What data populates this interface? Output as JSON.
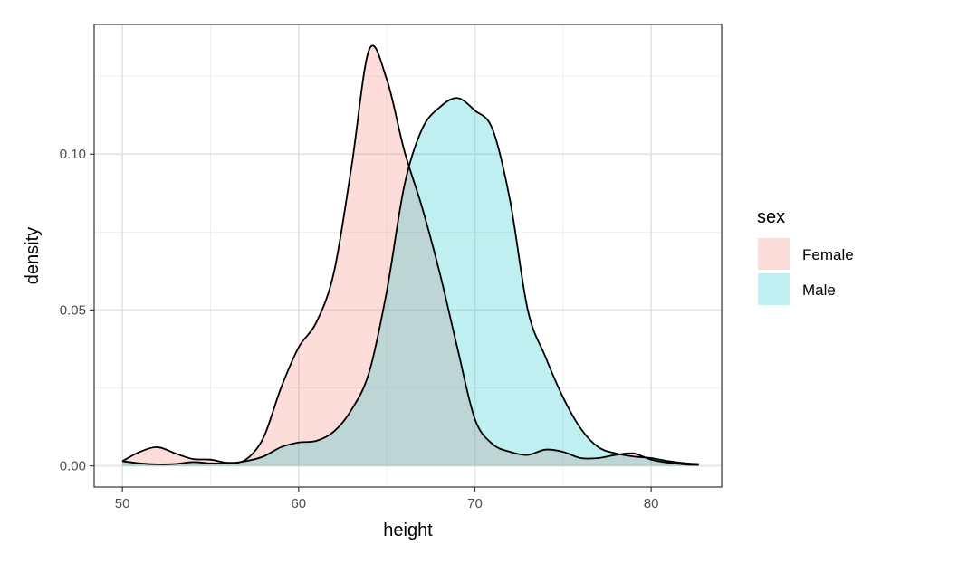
{
  "chart_data": {
    "type": "area",
    "subtype": "density",
    "xlabel": "height",
    "ylabel": "density",
    "xlim": [
      48.4,
      84.0
    ],
    "ylim": [
      -0.0068,
      0.1416
    ],
    "x_ticks": [
      50,
      60,
      70,
      80
    ],
    "x_tick_labels": [
      "50",
      "60",
      "70",
      "80"
    ],
    "y_ticks": [
      0.0,
      0.05,
      0.1
    ],
    "y_tick_labels": [
      "0.00",
      "0.05",
      "0.10"
    ],
    "grid": true,
    "legend": {
      "title": "sex",
      "position": "right",
      "entries": [
        "Female",
        "Male"
      ]
    },
    "series": [
      {
        "name": "Female",
        "color": "#F8766D",
        "fill_opacity": 0.25,
        "points": [
          [
            50,
            0.0015
          ],
          [
            51,
            0.0045
          ],
          [
            52,
            0.006
          ],
          [
            53,
            0.004
          ],
          [
            54,
            0.0022
          ],
          [
            55,
            0.002
          ],
          [
            56,
            0.001
          ],
          [
            57,
            0.002
          ],
          [
            58,
            0.009
          ],
          [
            59,
            0.025
          ],
          [
            60,
            0.038
          ],
          [
            61,
            0.046
          ],
          [
            62,
            0.062
          ],
          [
            63,
            0.096
          ],
          [
            64,
            0.1335
          ],
          [
            65,
            0.124
          ],
          [
            66,
            0.101
          ],
          [
            67,
            0.083
          ],
          [
            68,
            0.062
          ],
          [
            69,
            0.038
          ],
          [
            70,
            0.015
          ],
          [
            71,
            0.007
          ],
          [
            72,
            0.0045
          ],
          [
            73,
            0.0035
          ],
          [
            74,
            0.0052
          ],
          [
            75,
            0.0045
          ],
          [
            76,
            0.0025
          ],
          [
            77,
            0.0025
          ],
          [
            78,
            0.0035
          ],
          [
            79,
            0.004
          ],
          [
            80,
            0.002
          ],
          [
            81,
            0.001
          ],
          [
            82,
            0.0004
          ],
          [
            82.7,
            0.0003
          ]
        ]
      },
      {
        "name": "Male",
        "color": "#00BFC4",
        "fill_opacity": 0.25,
        "points": [
          [
            50,
            0.0015
          ],
          [
            51,
            0.0008
          ],
          [
            52,
            0.0005
          ],
          [
            53,
            0.0006
          ],
          [
            54,
            0.0012
          ],
          [
            55,
            0.0008
          ],
          [
            56,
            0.0008
          ],
          [
            57,
            0.0015
          ],
          [
            58,
            0.003
          ],
          [
            59,
            0.006
          ],
          [
            60,
            0.0075
          ],
          [
            61,
            0.008
          ],
          [
            62,
            0.011
          ],
          [
            63,
            0.018
          ],
          [
            64,
            0.03
          ],
          [
            65,
            0.056
          ],
          [
            66,
            0.09
          ],
          [
            67,
            0.108
          ],
          [
            68,
            0.115
          ],
          [
            69,
            0.118
          ],
          [
            70,
            0.114
          ],
          [
            71,
            0.108
          ],
          [
            72,
            0.085
          ],
          [
            73,
            0.05
          ],
          [
            74,
            0.035
          ],
          [
            75,
            0.022
          ],
          [
            76,
            0.012
          ],
          [
            77,
            0.006
          ],
          [
            78,
            0.004
          ],
          [
            79,
            0.003
          ],
          [
            80,
            0.0025
          ],
          [
            81,
            0.0015
          ],
          [
            82,
            0.0008
          ],
          [
            82.7,
            0.0006
          ]
        ]
      }
    ]
  }
}
